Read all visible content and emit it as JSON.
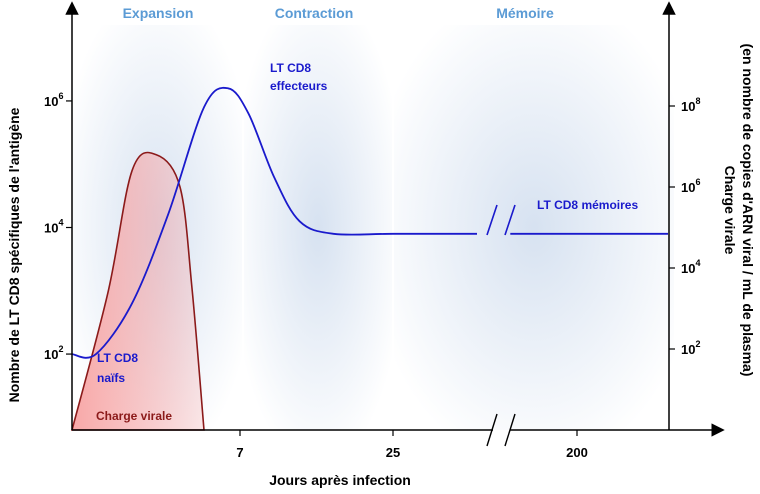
{
  "chart_data": {
    "type": "line",
    "phases": [
      {
        "name": "Expansion",
        "x_range": [
          0,
          7
        ]
      },
      {
        "name": "Contraction",
        "x_range": [
          7,
          25
        ]
      },
      {
        "name": "Mémoire",
        "x_range": [
          25,
          200
        ]
      }
    ],
    "x_axis": {
      "label": "Jours après infection",
      "ticks": [
        {
          "value": 7,
          "label": "7"
        },
        {
          "value": 25,
          "label": "25"
        },
        {
          "value": 200,
          "label": "200"
        }
      ],
      "break_between": [
        25,
        200
      ]
    },
    "y_left": {
      "label": "Nombre de LT CD8 spécifiques de l'antigène",
      "scale": "log",
      "range_log10": [
        0.8,
        7.2
      ],
      "ticks": [
        {
          "base": "10",
          "exp": "2",
          "log": 2
        },
        {
          "base": "10",
          "exp": "4",
          "log": 4
        },
        {
          "base": "10",
          "exp": "6",
          "log": 6
        }
      ]
    },
    "y_right": {
      "label_line1": "Charge virale",
      "label_line2": "(en nombre de copies d'ARN viral / mL de plasma)",
      "scale": "log",
      "range_log10": [
        0,
        10
      ],
      "ticks": [
        {
          "base": "10",
          "exp": "2",
          "log": 2
        },
        {
          "base": "10",
          "exp": "4",
          "log": 4
        },
        {
          "base": "10",
          "exp": "6",
          "log": 6
        },
        {
          "base": "10",
          "exp": "8",
          "log": 8
        }
      ]
    },
    "series": [
      {
        "name": "LT CD8",
        "axis": "left",
        "color": "#1a1acc",
        "points_log10": [
          [
            0,
            2
          ],
          [
            1,
            2
          ],
          [
            2.5,
            2.8
          ],
          [
            4,
            4.2
          ],
          [
            5.5,
            5.9
          ],
          [
            6.5,
            6.2
          ],
          [
            8,
            5.8
          ],
          [
            11,
            4.8
          ],
          [
            14,
            4.1
          ],
          [
            18,
            3.9
          ],
          [
            25,
            3.9
          ],
          [
            200,
            3.9
          ]
        ]
      },
      {
        "name": "Charge virale",
        "axis": "right",
        "color": "#8b1a1a",
        "fill_color": "#f7a3a3",
        "points_log10": [
          [
            0,
            0
          ],
          [
            1.5,
            3.4
          ],
          [
            2.5,
            6.4
          ],
          [
            3.5,
            6.8
          ],
          [
            4.5,
            6.0
          ],
          [
            5,
            3.5
          ],
          [
            5.5,
            0
          ]
        ]
      }
    ],
    "annotations": [
      {
        "line1": "LT CD8",
        "line2": "effecteurs",
        "color": "#1a1acc"
      },
      {
        "line1": "LT CD8",
        "line2": "naïfs",
        "color": "#1a1acc"
      },
      {
        "line1": "Charge virale",
        "color": "#8b1a1a"
      },
      {
        "line1": "LT CD8 mémoires",
        "color": "#1a1acc"
      }
    ],
    "phase_label_color": "#5b9bd5",
    "background_glow_color": "#c9d8ec"
  }
}
